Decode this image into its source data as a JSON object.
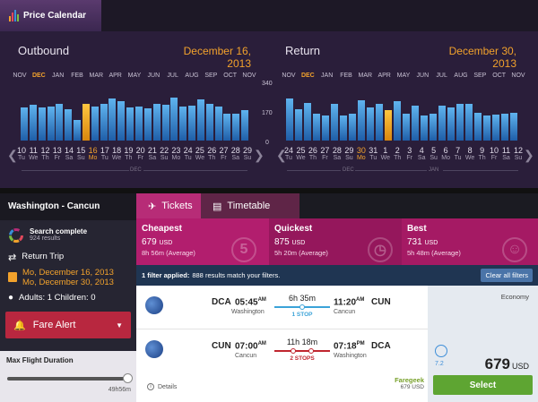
{
  "app": {
    "tab_label": "Price Calendar"
  },
  "outbound": {
    "title": "Outbound",
    "date": "December 16, 2013",
    "months": [
      "NOV",
      "DEC",
      "JAN",
      "FEB",
      "MAR",
      "APR",
      "MAY",
      "JUN",
      "JUL",
      "AUG",
      "SEP",
      "OCT",
      "NOV"
    ],
    "current_month": "DEC",
    "price_levels": [
      210,
      225,
      210,
      215,
      230,
      200,
      130,
      235,
      215,
      230,
      265,
      250,
      210,
      215,
      205,
      235,
      225,
      270,
      215,
      220,
      260,
      230,
      215,
      170,
      170,
      195
    ],
    "selected_index": 7,
    "days": [
      {
        "n": "10",
        "w": "Tu"
      },
      {
        "n": "11",
        "w": "We"
      },
      {
        "n": "12",
        "w": "Th"
      },
      {
        "n": "13",
        "w": "Fr"
      },
      {
        "n": "14",
        "w": "Sa"
      },
      {
        "n": "15",
        "w": "Su"
      },
      {
        "n": "16",
        "w": "Mo"
      },
      {
        "n": "17",
        "w": "Tu"
      },
      {
        "n": "18",
        "w": "We"
      },
      {
        "n": "19",
        "w": "Th"
      },
      {
        "n": "20",
        "w": "Fr"
      },
      {
        "n": "21",
        "w": "Sa"
      },
      {
        "n": "22",
        "w": "Su"
      },
      {
        "n": "23",
        "w": "Mo"
      },
      {
        "n": "24",
        "w": "Tu"
      },
      {
        "n": "25",
        "w": "We"
      },
      {
        "n": "26",
        "w": "Th"
      },
      {
        "n": "27",
        "w": "Fr"
      },
      {
        "n": "28",
        "w": "Sa"
      },
      {
        "n": "29",
        "w": "Su"
      }
    ],
    "selected_day": "16",
    "day_group_label": "DEC"
  },
  "return": {
    "title": "Return",
    "date": "December 30, 2013",
    "months": [
      "NOV",
      "DEC",
      "JAN",
      "FEB",
      "MAR",
      "APR",
      "MAY",
      "JUN",
      "JUL",
      "AUG",
      "SEP",
      "OCT",
      "NOV"
    ],
    "current_month": "DEC",
    "price_levels": [
      265,
      200,
      240,
      170,
      160,
      230,
      160,
      170,
      255,
      210,
      230,
      195,
      250,
      170,
      220,
      160,
      170,
      220,
      210,
      230,
      235,
      175,
      160,
      165,
      170,
      175
    ],
    "selected_index": 11,
    "days": [
      {
        "n": "24",
        "w": "Tu"
      },
      {
        "n": "25",
        "w": "We"
      },
      {
        "n": "26",
        "w": "Th"
      },
      {
        "n": "27",
        "w": "Fr"
      },
      {
        "n": "28",
        "w": "Sa"
      },
      {
        "n": "29",
        "w": "Su"
      },
      {
        "n": "30",
        "w": "Mo"
      },
      {
        "n": "31",
        "w": "Tu"
      },
      {
        "n": "1",
        "w": "We"
      },
      {
        "n": "2",
        "w": "Th"
      },
      {
        "n": "3",
        "w": "Fr"
      },
      {
        "n": "4",
        "w": "Sa"
      },
      {
        "n": "5",
        "w": "Su"
      },
      {
        "n": "6",
        "w": "Mo"
      },
      {
        "n": "7",
        "w": "Tu"
      },
      {
        "n": "8",
        "w": "We"
      },
      {
        "n": "9",
        "w": "Th"
      },
      {
        "n": "10",
        "w": "Fr"
      },
      {
        "n": "11",
        "w": "Sa"
      },
      {
        "n": "12",
        "w": "Su"
      }
    ],
    "selected_day": "30",
    "day_group_labels": [
      "DEC",
      "JAN"
    ]
  },
  "price_axis": {
    "max": "340",
    "mid": "170",
    "min": "0"
  },
  "sidebar": {
    "route": "Washington - Cancun",
    "search_status": "Search complete",
    "results_count": "924 results",
    "trip_type": "Return Trip",
    "depart_date": "Mo, December 16, 2013",
    "return_date": "Mo, December 30, 2013",
    "passengers": "Adults: 1 Children: 0",
    "fare_alert": "Fare Alert",
    "max_duration_label": "Max Flight Duration",
    "max_duration_value": "49h56m",
    "max_duration_fraction": 1.0
  },
  "tabs": {
    "tickets": "Tickets",
    "timetable": "Timetable"
  },
  "summary": {
    "cheapest": {
      "label": "Cheapest",
      "price": "679",
      "currency": "USD",
      "detail": "8h 56m (Average)"
    },
    "quickest": {
      "label": "Quickest",
      "price": "875",
      "currency": "USD",
      "detail": "5h 20m (Average)"
    },
    "best": {
      "label": "Best",
      "price": "731",
      "currency": "USD",
      "detail": "5h 48m (Average)"
    },
    "deco_number": "5"
  },
  "filter": {
    "applied": "1 filter applied:",
    "message": "888 results match your filters.",
    "clear": "Clear all filters"
  },
  "result": {
    "outbound": {
      "from_code": "DCA",
      "dep_time": "05:45",
      "dep_suffix": "AM",
      "from_city": "Washington",
      "duration": "6h 35m",
      "stops": "1 STOP",
      "arr_time": "11:20",
      "arr_suffix": "AM",
      "to_code": "CUN",
      "to_city": "Cancun"
    },
    "inbound": {
      "from_code": "CUN",
      "dep_time": "07:00",
      "dep_suffix": "AM",
      "from_city": "Cancun",
      "duration": "11h 18m",
      "stops": "2 STOPS",
      "arr_time": "07:18",
      "arr_suffix": "PM",
      "to_code": "DCA",
      "to_city": "Washington"
    },
    "details": "Details",
    "provider": "Faregeek",
    "provider_price": "679 USD",
    "cabin": "Economy",
    "score": "7.2",
    "price": "679",
    "currency": "USD",
    "select": "Select"
  },
  "colors": {
    "accent": "#f2a22c",
    "bar": "#3a8fd8",
    "selected_bar": "#f5a623",
    "pink": "#b21e6e",
    "select_green": "#5ea532"
  }
}
